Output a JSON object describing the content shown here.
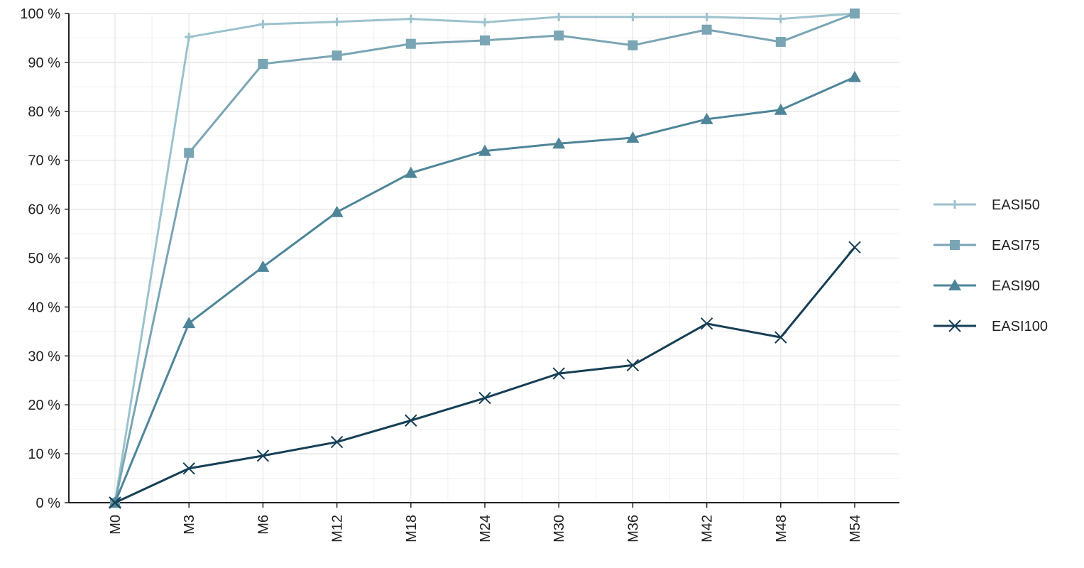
{
  "chart_data": {
    "type": "line",
    "title": "",
    "xlabel": "",
    "ylabel": "",
    "categories": [
      "M0",
      "M3",
      "M6",
      "M12",
      "M18",
      "M24",
      "M30",
      "M36",
      "M42",
      "M48",
      "M54"
    ],
    "y_ticks": [
      "0 %",
      "10 %",
      "20 %",
      "30 %",
      "40 %",
      "50 %",
      "60 %",
      "70 %",
      "80 %",
      "90 %",
      "100 %"
    ],
    "ylim": [
      0,
      100
    ],
    "grid": true,
    "legend_position": "right",
    "series": [
      {
        "name": "EASI50",
        "marker": "plus",
        "color": "#9cc2cd",
        "values": [
          0,
          95.2,
          97.8,
          98.3,
          98.9,
          98.2,
          99.3,
          99.3,
          99.3,
          98.9,
          100
        ]
      },
      {
        "name": "EASI75",
        "marker": "square",
        "color": "#7aa5b4",
        "values": [
          0,
          71.5,
          89.7,
          91.4,
          93.8,
          94.5,
          95.5,
          93.5,
          96.7,
          94.2,
          100
        ]
      },
      {
        "name": "EASI90",
        "marker": "triangle",
        "color": "#4e8599",
        "values": [
          0,
          36.7,
          48.2,
          59.4,
          67.4,
          71.9,
          73.4,
          74.6,
          78.4,
          80.3,
          87.0
        ]
      },
      {
        "name": "EASI100",
        "marker": "cross",
        "color": "#163f55",
        "values": [
          0,
          7.0,
          9.6,
          12.4,
          16.8,
          21.4,
          26.4,
          28.1,
          36.6,
          33.8,
          52.2
        ]
      }
    ]
  }
}
